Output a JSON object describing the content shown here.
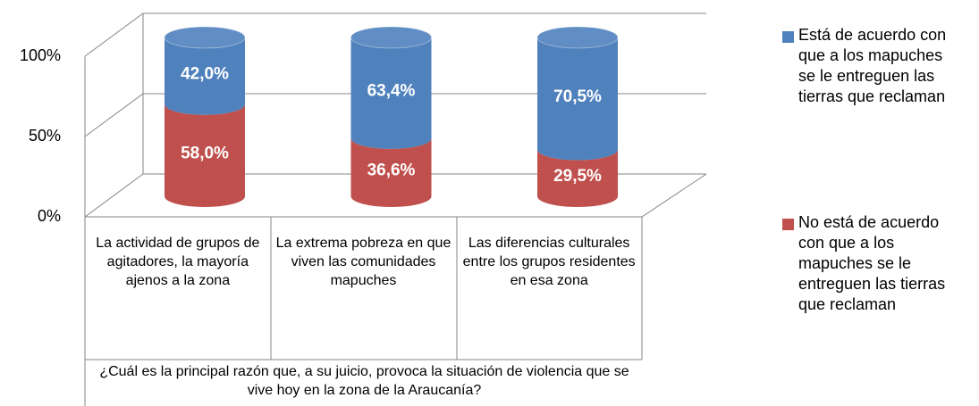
{
  "chart_data": {
    "type": "bar3d-stacked",
    "x_label": "¿Cuál es la principal razón que, a su juicio, provoca la situación de violencia que se vive hoy en la zona de la Araucanía?",
    "categories": [
      "La actividad de grupos de agitadores, la mayoría ajenos a la zona",
      "La extrema pobreza en que viven las comunidades mapuches",
      "Las diferencias culturales entre los grupos residentes en esa zona"
    ],
    "series": [
      {
        "name": "No está de acuerdo con que a los mapuches se le entreguen las tierras que reclaman",
        "color": "#c0504d",
        "values": [
          58.0,
          36.6,
          29.5
        ],
        "value_labels": [
          "58,0%",
          "36,6%",
          "29,5%"
        ]
      },
      {
        "name": "Está de acuerdo con que a los mapuches se le entreguen las tierras que reclaman",
        "color": "#4f81bd",
        "values": [
          42.0,
          63.4,
          70.5
        ],
        "value_labels": [
          "42,0%",
          "63,4%",
          "70,5%"
        ]
      }
    ],
    "ylim": [
      0,
      100
    ],
    "yticks": [
      {
        "value": 0,
        "label": "0%"
      },
      {
        "value": 50,
        "label": "50%"
      },
      {
        "value": 100,
        "label": "100%"
      }
    ],
    "grid": true
  }
}
